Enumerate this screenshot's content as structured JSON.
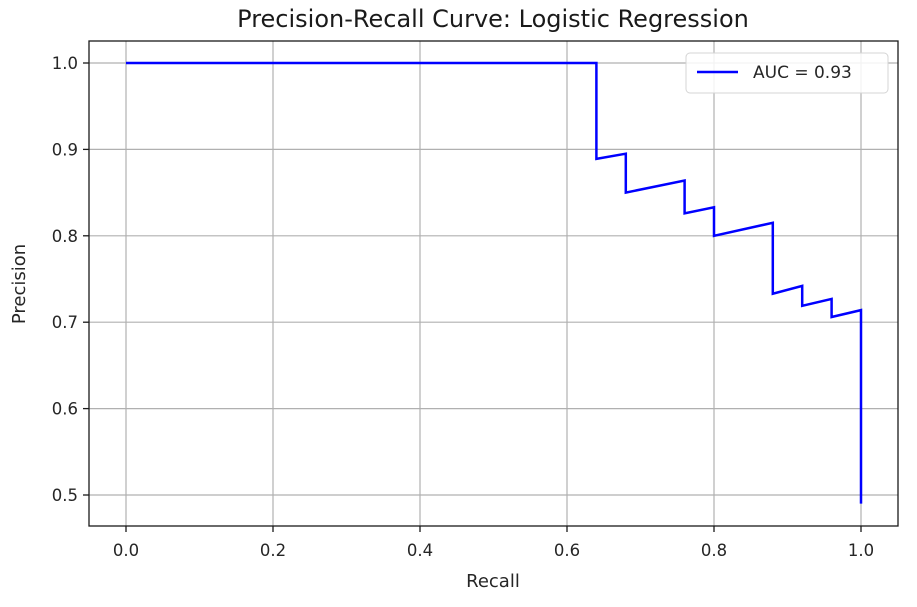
{
  "chart_data": {
    "type": "line",
    "title": "Precision-Recall Curve: Logistic Regression",
    "xlabel": "Recall",
    "ylabel": "Precision",
    "xlim": [
      -0.05,
      1.05
    ],
    "ylim": [
      0.475,
      1.026
    ],
    "xticks": [
      "0.0",
      "0.2",
      "0.4",
      "0.6",
      "0.8",
      "1.0"
    ],
    "yticks": [
      "0.5",
      "0.6",
      "0.7",
      "0.8",
      "0.9",
      "1.0"
    ],
    "grid": true,
    "legend_position": "upper right",
    "series": [
      {
        "name": "AUC = 0.93",
        "color": "#0000ff",
        "drawstyle": "steps",
        "x": [
          0.0,
          0.64,
          0.64,
          0.68,
          0.68,
          0.76,
          0.76,
          0.8,
          0.8,
          0.88,
          0.88,
          0.92,
          0.92,
          0.96,
          0.96,
          1.0,
          1.0
        ],
        "y": [
          1.0,
          1.0,
          0.889,
          0.895,
          0.85,
          0.864,
          0.826,
          0.833,
          0.8,
          0.815,
          0.733,
          0.742,
          0.719,
          0.727,
          0.706,
          0.714,
          0.49
        ]
      }
    ]
  },
  "legend": {
    "label": "AUC = 0.93"
  }
}
